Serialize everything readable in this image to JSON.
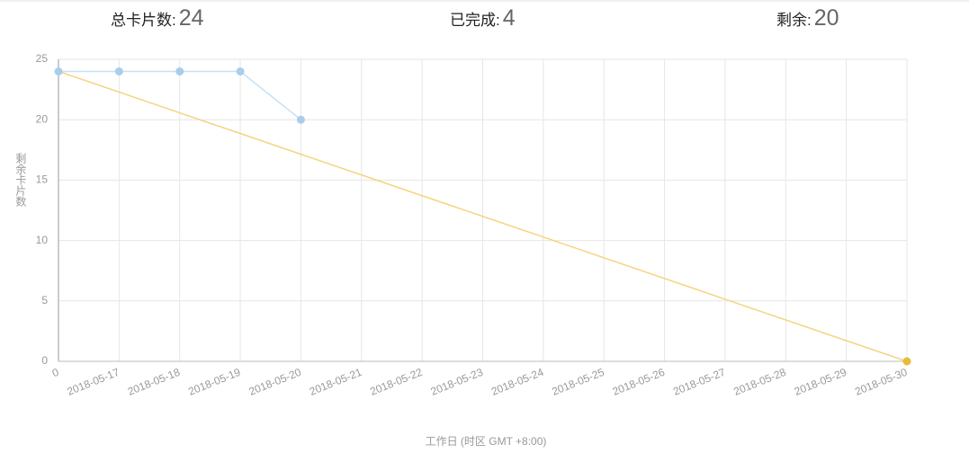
{
  "summary": {
    "total_label": "总卡片数:",
    "total": 24,
    "done_label": "已完成:",
    "done": 4,
    "remaining_label": "剩余:",
    "remaining": 20
  },
  "chart_data": {
    "type": "line",
    "y_label": "剩余卡片数",
    "x_label": "工作日 (时区 GMT +8:00)",
    "categories": [
      "0",
      "2018-05-17",
      "2018-05-18",
      "2018-05-19",
      "2018-05-20",
      "2018-05-21",
      "2018-05-22",
      "2018-05-23",
      "2018-05-24",
      "2018-05-25",
      "2018-05-26",
      "2018-05-27",
      "2018-05-28",
      "2018-05-29",
      "2018-05-30"
    ],
    "series": [
      {
        "color": "#f5d47e",
        "dot": "#e8bb3a",
        "values": [
          24,
          22.29,
          20.57,
          18.86,
          17.14,
          15.43,
          13.71,
          12,
          10.29,
          8.57,
          6.86,
          5.14,
          3.43,
          1.71,
          0
        ]
      },
      {
        "color": "#c6e0f4",
        "dot": "#a9cdec",
        "values": [
          24,
          24,
          24,
          24,
          20,
          null,
          null,
          null,
          null,
          null,
          null,
          null,
          null,
          null,
          null
        ]
      }
    ],
    "ylim": [
      0,
      25
    ],
    "yticks": [
      0,
      5,
      10,
      15,
      20,
      25
    ],
    "grid": true
  }
}
